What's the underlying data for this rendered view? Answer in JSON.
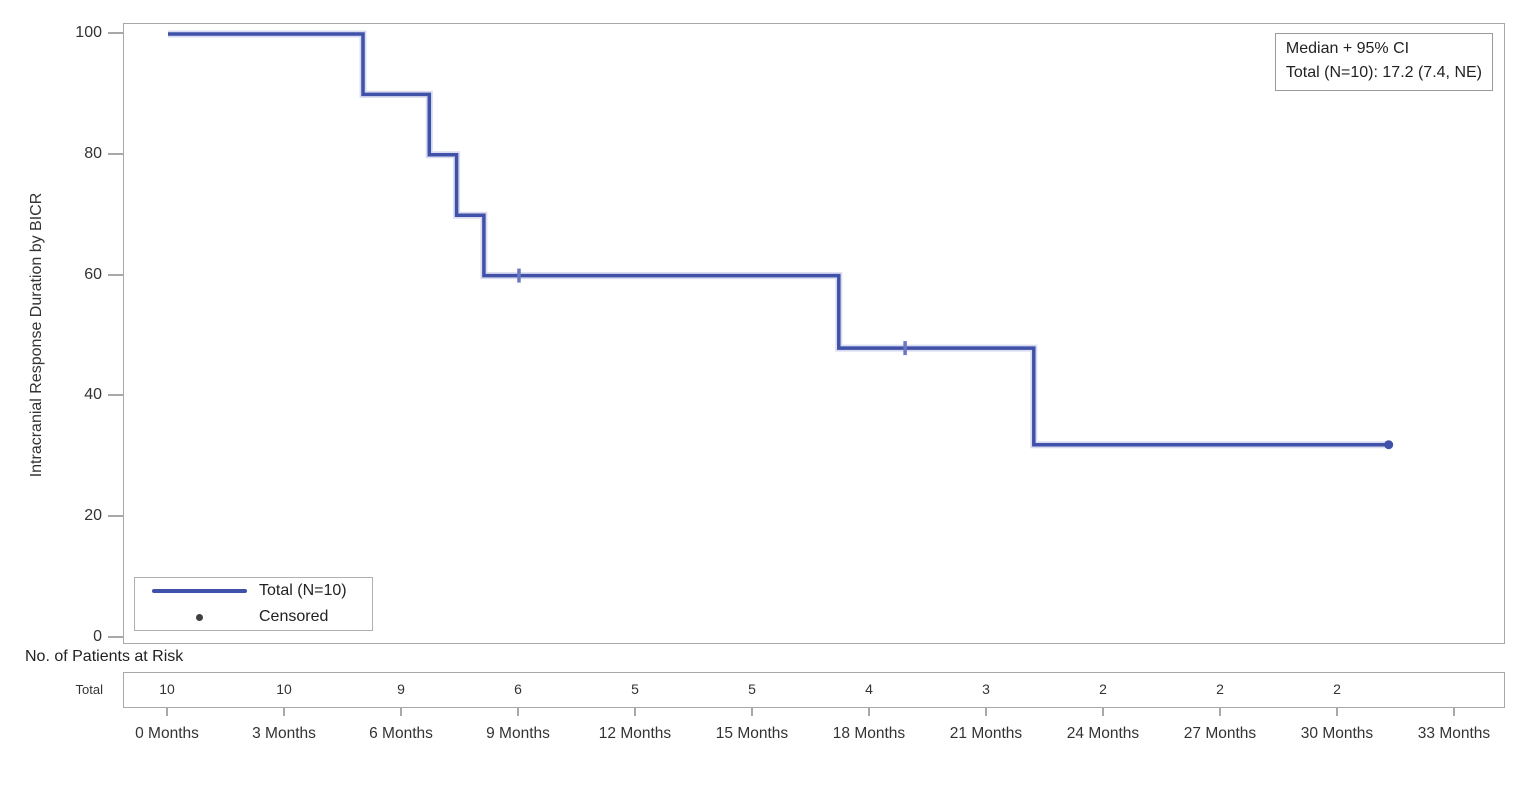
{
  "chart_data": {
    "type": "line",
    "subtype": "kaplan_meier_step_curve",
    "title": "",
    "ylabel": "Intracranial Response Duration by BICR",
    "ylim": [
      0,
      100
    ],
    "yticks": [
      100,
      80,
      60,
      40,
      20,
      0
    ],
    "xlim_months": [
      0,
      33
    ],
    "x_tick_labels": [
      "0 Months",
      "3 Months",
      "6 Months",
      "9 Months",
      "12 Months",
      "15 Months",
      "18 Months",
      "21 Months",
      "24 Months",
      "27 Months",
      "30 Months",
      "33 Months"
    ],
    "grid": "off",
    "series": [
      {
        "name": "Total (N=10)",
        "color": "#3f51a8",
        "steps_time_percent": [
          [
            0,
            100
          ],
          [
            5.0,
            90
          ],
          [
            6.7,
            80
          ],
          [
            7.4,
            70
          ],
          [
            8.1,
            60
          ],
          [
            17.2,
            48
          ],
          [
            22.2,
            32
          ]
        ],
        "end_time": 31.3,
        "censored_time_percent": [
          [
            9.0,
            60,
            "tick"
          ],
          [
            18.9,
            48,
            "tick"
          ],
          [
            31.3,
            32,
            "dot"
          ]
        ]
      }
    ],
    "legend": {
      "position": "inside-bottom-left",
      "entries": [
        {
          "label": "Total (N=10)",
          "marker": "line"
        },
        {
          "label": "Censored",
          "marker": "dot"
        }
      ]
    },
    "annotation_box": {
      "line1": "Median + 95% CI",
      "line2": "Total (N=10): 17.2 (7.4, NE)"
    },
    "risk_table": {
      "header": "No. of Patients at Risk",
      "row_label": "Total",
      "times_months": [
        0,
        3,
        6,
        9,
        12,
        15,
        18,
        21,
        24,
        27,
        30
      ],
      "values": [
        10,
        10,
        9,
        6,
        5,
        5,
        4,
        3,
        2,
        2,
        2
      ]
    },
    "colors": {
      "line": "#3f51a8",
      "line_halo": "#b9bfe3",
      "censor_tick": "#6b77c0",
      "frame": "#a8a8a8",
      "text": "#333333",
      "legend_dot": "#404040"
    }
  }
}
